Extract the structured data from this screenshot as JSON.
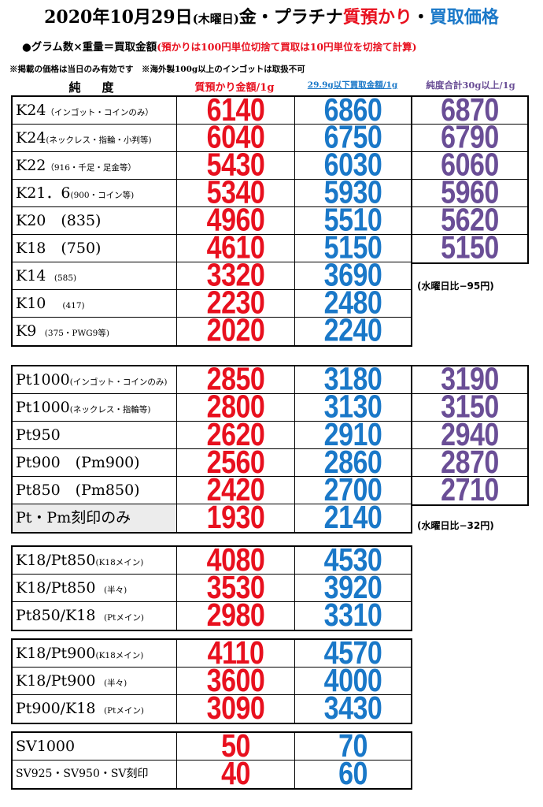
{
  "title": {
    "date": "2020年10月29日",
    "weekday": "(木曜日)",
    "metals": "金・プラチナ",
    "pawn": "質預かり",
    "separator": "・",
    "buy": "買取価格"
  },
  "subtitle": {
    "formula": "●グラム数×重量＝買取金額",
    "rounding_note": "(預かりは100円単位切捨て買取は10円単位を切捨て計算)"
  },
  "notice": "※掲載の価格は当日のみ有効です　※海外製100g以上のインゴットは取扱不可",
  "headers": {
    "purity": "純　度",
    "pawn": "質預かり金額/1g",
    "buy": "29.9g以下買取金額/1g",
    "bulk": "純度合計30g以上/1g"
  },
  "colors": {
    "red": "#e8101e",
    "blue": "#1a78c8",
    "purple": "#6a4e96"
  },
  "gold": [
    {
      "name": "K24",
      "note": "（インゴット・コインのみ）",
      "pawn": "6140",
      "buy": "6860",
      "bulk": "6870"
    },
    {
      "name": "K24",
      "note": "(ネックレス・指輪・小判等)",
      "pawn": "6040",
      "buy": "6750",
      "bulk": "6790"
    },
    {
      "name": "K22",
      "note": "（916・千足・足金等）",
      "pawn": "5430",
      "buy": "6030",
      "bulk": "6060"
    },
    {
      "name": "K21．6",
      "note": "(900・コイン等)",
      "pawn": "5340",
      "buy": "5930",
      "bulk": "5960"
    },
    {
      "name": "K20　(835)",
      "note": "",
      "pawn": "4960",
      "buy": "5510",
      "bulk": "5620"
    },
    {
      "name": "K18　(750)",
      "note": "",
      "pawn": "4610",
      "buy": "5150",
      "bulk": "5150"
    },
    {
      "name": "K14",
      "note": "　(585)",
      "pawn": "3320",
      "buy": "3690"
    },
    {
      "name": "K10",
      "note": "　　(417)",
      "pawn": "2230",
      "buy": "2480"
    },
    {
      "name": "K9",
      "note": "　(375・PWG9等)",
      "pawn": "2020",
      "buy": "2240"
    }
  ],
  "gold_diff": "(水曜日比−95円)",
  "platinum": [
    {
      "name": "Pt1000",
      "note": "(インゴット・コインのみ)",
      "pawn": "2850",
      "buy": "3180",
      "bulk": "3190"
    },
    {
      "name": "Pt1000",
      "note": "(ネックレス・指輪等)",
      "pawn": "2800",
      "buy": "3130",
      "bulk": "3150"
    },
    {
      "name": "Pt950",
      "note": "",
      "pawn": "2620",
      "buy": "2910",
      "bulk": "2940"
    },
    {
      "name": "Pt900　(Pm900)",
      "note": "",
      "pawn": "2560",
      "buy": "2860",
      "bulk": "2870"
    },
    {
      "name": "Pt850　(Pm850)",
      "note": "",
      "pawn": "2420",
      "buy": "2700",
      "bulk": "2710"
    },
    {
      "name": "Pt・Pm刻印のみ",
      "note": "",
      "pawn": "1930",
      "buy": "2140"
    }
  ],
  "platinum_diff": "(水曜日比−32円)",
  "combo850": [
    {
      "name": "K18/Pt850",
      "note": "(K18メイン)",
      "pawn": "4080",
      "buy": "4530"
    },
    {
      "name": "K18/Pt850",
      "note": "　(半々)",
      "pawn": "3530",
      "buy": "3920"
    },
    {
      "name": "Pt850/K18",
      "note": "　(Ptメイン)",
      "pawn": "2980",
      "buy": "3310"
    }
  ],
  "combo900": [
    {
      "name": "K18/Pt900",
      "note": "(K18メイン)",
      "pawn": "4110",
      "buy": "4570"
    },
    {
      "name": "K18/Pt900",
      "note": "　(半々)",
      "pawn": "3600",
      "buy": "4000"
    },
    {
      "name": "Pt900/K18",
      "note": "　(Ptメイン)",
      "pawn": "3090",
      "buy": "3430"
    }
  ],
  "silver": [
    {
      "name": "SV1000",
      "note": "",
      "pawn": "50",
      "buy": "70"
    },
    {
      "name": "SV925・SV950・SV刻印",
      "note": "",
      "pawn": "40",
      "buy": "60"
    }
  ]
}
